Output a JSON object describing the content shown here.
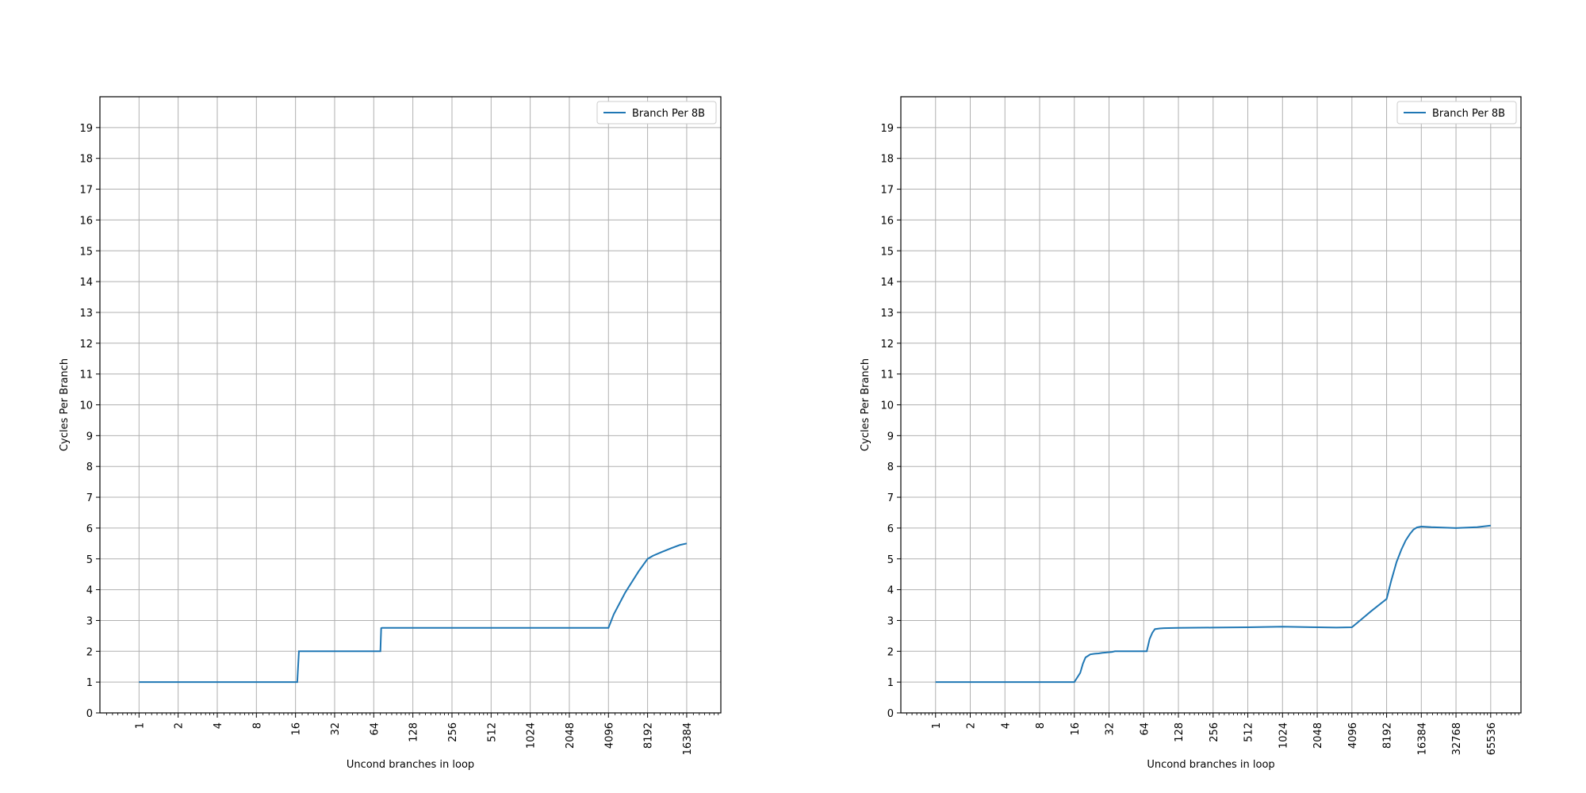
{
  "colors": {
    "series": "#1f77b4",
    "grid": "#b0b0b0",
    "axes": "#000000",
    "background": "#ffffff"
  },
  "chart_data": [
    {
      "type": "line",
      "xscale": "log2",
      "xlim": [
        0.5,
        30000
      ],
      "ylim": [
        0,
        20
      ],
      "xlabel": "Uncond branches in loop",
      "ylabel": "Cycles Per Branch",
      "xticks": [
        "1",
        "2",
        "4",
        "8",
        "16",
        "32",
        "64",
        "128",
        "256",
        "512",
        "1024",
        "2048",
        "4096",
        "8192",
        "16384"
      ],
      "yticks": [
        "0",
        "1",
        "2",
        "3",
        "4",
        "5",
        "6",
        "7",
        "8",
        "9",
        "10",
        "11",
        "12",
        "13",
        "14",
        "15",
        "16",
        "17",
        "18",
        "19"
      ],
      "grid": true,
      "legend_position": "top-right",
      "series": [
        {
          "name": "Branch Per 8B",
          "x": [
            1,
            15,
            16.5,
            17,
            64,
            72,
            73,
            74,
            100,
            1000,
            4096,
            4500,
            5500,
            7000,
            8192,
            9000,
            10500,
            12500,
            14500,
            16384
          ],
          "y": [
            1,
            1,
            1,
            2,
            2,
            2,
            2.75,
            2.76,
            2.76,
            2.76,
            2.76,
            3.2,
            3.9,
            4.6,
            5.0,
            5.1,
            5.22,
            5.35,
            5.45,
            5.5
          ]
        }
      ]
    },
    {
      "type": "line",
      "xscale": "log2",
      "xlim": [
        0.5,
        120000
      ],
      "ylim": [
        0,
        20
      ],
      "xlabel": "Uncond branches in loop",
      "ylabel": "Cycles Per Branch",
      "xticks": [
        "1",
        "2",
        "4",
        "8",
        "16",
        "32",
        "64",
        "128",
        "256",
        "512",
        "1024",
        "2048",
        "4096",
        "8192",
        "16384",
        "32768",
        "65536"
      ],
      "yticks": [
        "0",
        "1",
        "2",
        "3",
        "4",
        "5",
        "6",
        "7",
        "8",
        "9",
        "10",
        "11",
        "12",
        "13",
        "14",
        "15",
        "16",
        "17",
        "18",
        "19"
      ],
      "grid": true,
      "legend_position": "top-right",
      "series": [
        {
          "name": "Branch Per 8B",
          "x": [
            1,
            15,
            16,
            18,
            19,
            20,
            21,
            22,
            24,
            26,
            28,
            30,
            32,
            34,
            36,
            40,
            50,
            60,
            64,
            68,
            72,
            76,
            80,
            88,
            96,
            128,
            256,
            512,
            1024,
            2048,
            3000,
            4096,
            5000,
            6000,
            8192,
            9000,
            10000,
            11000,
            12000,
            13000,
            14000,
            15000,
            16384,
            20000,
            32768,
            50000,
            65536
          ],
          "y": [
            1,
            1,
            1,
            1.3,
            1.6,
            1.8,
            1.85,
            1.9,
            1.92,
            1.93,
            1.95,
            1.96,
            1.97,
            1.98,
            2.0,
            2.0,
            2.0,
            2.0,
            2.0,
            2.0,
            2.4,
            2.6,
            2.72,
            2.74,
            2.75,
            2.76,
            2.77,
            2.78,
            2.8,
            2.78,
            2.77,
            2.78,
            3.05,
            3.3,
            3.7,
            4.3,
            4.9,
            5.3,
            5.6,
            5.8,
            5.95,
            6.02,
            6.05,
            6.03,
            6.0,
            6.03,
            6.08
          ]
        }
      ]
    }
  ]
}
